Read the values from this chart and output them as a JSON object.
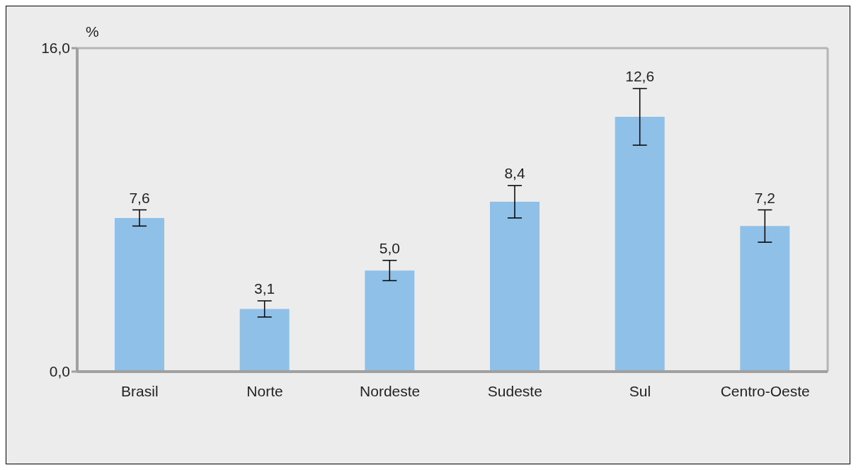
{
  "chart_data": {
    "type": "bar",
    "ylabel": "%",
    "categories": [
      "Brasil",
      "Norte",
      "Nordeste",
      "Sudeste",
      "Sul",
      "Centro-Oeste"
    ],
    "values": [
      7.6,
      3.1,
      5.0,
      8.4,
      12.6,
      7.2
    ],
    "errors": [
      0.4,
      0.4,
      0.5,
      0.8,
      1.4,
      0.8
    ],
    "value_labels": [
      "7,6",
      "3,1",
      "5,0",
      "8,4",
      "12,6",
      "7,2"
    ],
    "color": "#8fc0e8",
    "ylim": [
      0,
      16
    ],
    "yticks": [
      {
        "value": 0,
        "label": "0,0"
      },
      {
        "value": 16,
        "label": "16,0"
      }
    ],
    "grid": false,
    "legend": false
  }
}
